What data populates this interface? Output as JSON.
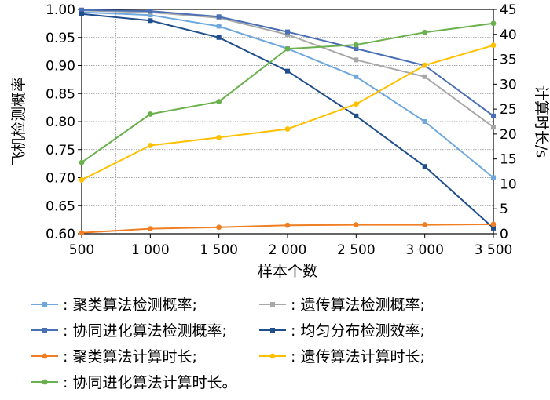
{
  "chart_data": {
    "type": "line",
    "x": [
      500,
      1000,
      1500,
      2000,
      2500,
      3000,
      3500
    ],
    "x_tick_labels": [
      "500",
      "1 000",
      "1 500",
      "2 000",
      "2 500",
      "3 000",
      "3 500"
    ],
    "xlabel": "样本个数",
    "ylabel_left": "飞机检测概率",
    "ylabel_right": "计算时长/s",
    "ylim_left": [
      0.6,
      1.0
    ],
    "ylim_right": [
      0,
      45
    ],
    "y_left_ticks": [
      "0.60",
      "0.65",
      "0.70",
      "0.75",
      "0.80",
      "0.85",
      "0.90",
      "0.95",
      "1.00"
    ],
    "y_right_ticks": [
      "0",
      "5",
      "10",
      "15",
      "20",
      "25",
      "30",
      "35",
      "40",
      "45"
    ],
    "grid": true,
    "series": [
      {
        "name": "聚类算法检测概率;",
        "axis": "left",
        "color": "#6fa8dc",
        "values": [
          0.995,
          0.99,
          0.97,
          0.93,
          0.88,
          0.8,
          0.7
        ]
      },
      {
        "name": "遗传算法检测概率;",
        "axis": "left",
        "color": "#a8a8a8",
        "values": [
          0.998,
          0.995,
          0.985,
          0.955,
          0.91,
          0.88,
          0.79
        ]
      },
      {
        "name": "协同进化算法检测概率;",
        "axis": "left",
        "color": "#4a6fb5",
        "values": [
          0.999,
          0.997,
          0.987,
          0.96,
          0.93,
          0.9,
          0.81
        ]
      },
      {
        "name": "均匀分布检测效率;",
        "axis": "left",
        "color": "#1f4e8c",
        "values": [
          0.992,
          0.98,
          0.95,
          0.89,
          0.81,
          0.72,
          0.61
        ]
      },
      {
        "name": "聚类算法计算时长;",
        "axis": "right",
        "color": "#f07f24",
        "values": [
          0.2,
          1.0,
          1.3,
          1.7,
          1.8,
          1.8,
          1.9
        ]
      },
      {
        "name": "遗传算法计算时长;",
        "axis": "right",
        "color": "#ffc000",
        "values": [
          10.8,
          17.7,
          19.3,
          21.0,
          26.0,
          33.8,
          37.8
        ]
      },
      {
        "name": "协同进化算法计算时长。",
        "axis": "right",
        "color": "#6ab04c",
        "values": [
          14.3,
          24.0,
          26.5,
          37.1,
          37.9,
          40.4,
          42.2
        ]
      }
    ],
    "legend_prefix": ": ",
    "legend_placement": "bottom"
  }
}
